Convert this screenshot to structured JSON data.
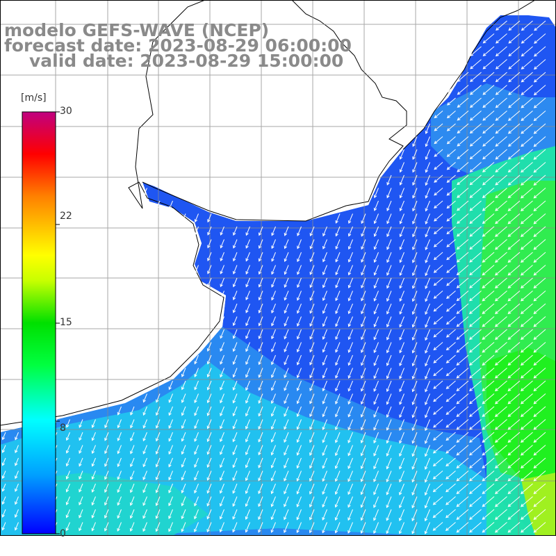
{
  "title": {
    "line1": "modelo GEFS-WAVE (NCEP)",
    "line2": "forecast date: 2023-08-29 06:00:00",
    "line3": "valid date: 2023-08-29 15:00:00"
  },
  "colorbar": {
    "unit": "[m/s]",
    "min": 0,
    "max": 30,
    "ticks": [
      "30",
      "22",
      "15",
      "8",
      "0"
    ],
    "tick_values": [
      30,
      22,
      15,
      8,
      0
    ],
    "colors": [
      "#0000ff",
      "#00a0ff",
      "#00ffff",
      "#00ff00",
      "#ffff00",
      "#ff8000",
      "#ff0000",
      "#c00080"
    ]
  },
  "map": {
    "variable": "wind speed and direction",
    "ocean_colors": {
      "calm": "#1f50f0",
      "low": "#2a8cf0",
      "mid": "#20c8f0",
      "high": "#20f0a0",
      "strong": "#30f030"
    },
    "land_color": "#ffffff",
    "coast_color": "#000000",
    "grid_color": "#888888"
  }
}
